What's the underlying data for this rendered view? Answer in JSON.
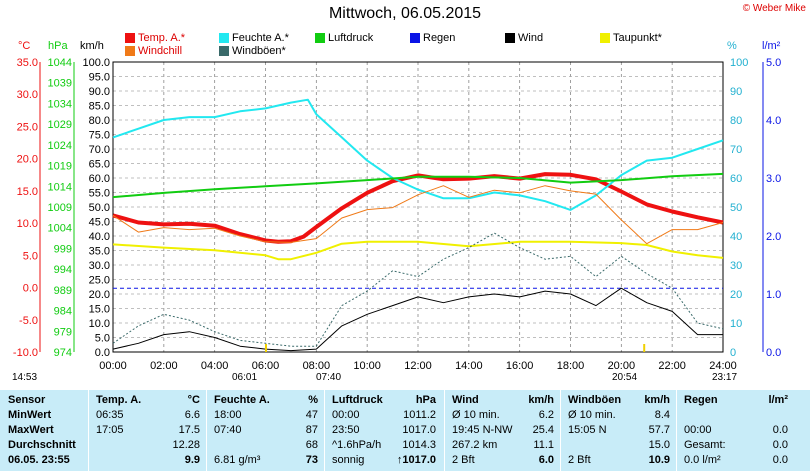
{
  "title": "Mittwoch, 06.05.2015",
  "copyright": "© Weber Mike",
  "legend": [
    {
      "label": "Temp. A.*",
      "color": "#ee1111"
    },
    {
      "label": "Feuchte A.*",
      "color": "#22e8f0"
    },
    {
      "label": "Luftdruck",
      "color": "#11cc11"
    },
    {
      "label": "Regen",
      "color": "#0a14e6"
    },
    {
      "label": "Wind",
      "color": "#000000"
    },
    {
      "label": "Taupunkt*",
      "color": "#f0f000"
    },
    {
      "label": "Windchill",
      "color": "#f07a18"
    },
    {
      "label": "Windböen*",
      "color": "#3a6a6a"
    }
  ],
  "units": {
    "temp": "°C",
    "pressure": "hPa",
    "wind": "km/h",
    "humidity": "%",
    "rain": "l/m²"
  },
  "chart_data": {
    "type": "line",
    "title": "Mittwoch, 06.05.2015",
    "x_ticks": [
      "00:00",
      "02:00",
      "04:00",
      "06:00",
      "08:00",
      "10:00",
      "12:00",
      "14:00",
      "16:00",
      "18:00",
      "20:00",
      "22:00",
      "24:00"
    ],
    "axes": {
      "temp": {
        "label": "°C",
        "ticks": [
          "35.0",
          "30.0",
          "25.0",
          "20.0",
          "15.0",
          "10.0",
          "5.0",
          "0.0",
          "-5.0",
          "-10.0"
        ],
        "range": [
          -10,
          35
        ],
        "color": "#ee1111"
      },
      "pressure": {
        "label": "hPa",
        "ticks": [
          "1044",
          "1039",
          "1034",
          "1029",
          "1024",
          "1019",
          "1014",
          "1009",
          "1004",
          "999",
          "994",
          "989",
          "984",
          "979",
          "974"
        ],
        "range": [
          974,
          1044
        ],
        "color": "#11cc11"
      },
      "wind": {
        "label": "km/h",
        "ticks": [
          "100.0",
          "95.0",
          "90.0",
          "85.0",
          "80.0",
          "75.0",
          "70.0",
          "65.0",
          "60.0",
          "55.0",
          "50.0",
          "45.0",
          "40.0",
          "35.0",
          "30.0",
          "25.0",
          "20.0",
          "15.0",
          "10.0",
          "5.0",
          "0.0"
        ],
        "range": [
          0,
          100
        ],
        "color": "#000000"
      },
      "humidity": {
        "label": "%",
        "ticks": [
          "100",
          "90",
          "80",
          "70",
          "60",
          "50",
          "40",
          "30",
          "20",
          "10",
          "0"
        ],
        "range": [
          0,
          100
        ],
        "color": "#22b0d0"
      },
      "rain": {
        "label": "l/m²",
        "ticks": [
          "5.0",
          "4.0",
          "3.0",
          "2.0",
          "1.0",
          "0.0"
        ],
        "range": [
          0,
          5
        ],
        "color": "#0a14e6"
      }
    },
    "series": [
      {
        "name": "Temp. A.*",
        "axis": "temp",
        "color": "#ee1111",
        "x": [
          0,
          1,
          2,
          3,
          4,
          5,
          6,
          6.5,
          7,
          7.5,
          8,
          9,
          10,
          11,
          12,
          13,
          14,
          15,
          16,
          17,
          18,
          19,
          20,
          21,
          22,
          23,
          24
        ],
        "y": [
          11.2,
          10.1,
          9.8,
          9.9,
          9.6,
          8.3,
          7.3,
          7.1,
          7.2,
          7.9,
          9.4,
          12.3,
          14.7,
          16.5,
          17.4,
          16.8,
          16.9,
          17.3,
          16.9,
          17.6,
          17.5,
          16.8,
          14.9,
          12.9,
          11.8,
          10.9,
          10.1
        ]
      },
      {
        "name": "Feuchte A.*",
        "axis": "humidity",
        "color": "#22e8f0",
        "x": [
          0,
          1,
          2,
          3,
          4,
          5,
          6,
          7,
          7.67,
          8,
          9,
          10,
          11,
          12,
          13,
          14,
          15,
          16,
          17,
          18,
          19,
          20,
          21,
          22,
          23,
          24
        ],
        "y": [
          74,
          77,
          80,
          81,
          81,
          83,
          84,
          86,
          87,
          82,
          74,
          66,
          60,
          56,
          53,
          53,
          55,
          54,
          52,
          49,
          54,
          61,
          66,
          67,
          70,
          73
        ]
      },
      {
        "name": "Luftdruck",
        "axis": "pressure",
        "color": "#11cc11",
        "x": [
          0,
          2,
          4,
          6,
          8,
          10,
          12,
          14,
          16,
          18,
          20,
          22,
          24
        ],
        "y": [
          1011.4,
          1012.4,
          1013.3,
          1014.0,
          1014.7,
          1015.5,
          1016.3,
          1016.3,
          1016.0,
          1014.9,
          1015.5,
          1016.4,
          1017.0
        ]
      },
      {
        "name": "Taupunkt*",
        "axis": "temp",
        "color": "#f0f000",
        "x": [
          0,
          2,
          4,
          6,
          6.5,
          7,
          8,
          9,
          10,
          12,
          14,
          16,
          18,
          20,
          21,
          22,
          23,
          24
        ],
        "y": [
          6.7,
          6.2,
          5.8,
          5.0,
          4.4,
          4.4,
          5.4,
          6.8,
          7.1,
          7.1,
          6.4,
          7.1,
          7.1,
          6.9,
          6.6,
          5.6,
          5.0,
          4.6
        ]
      },
      {
        "name": "Windchill",
        "axis": "temp",
        "color": "#f07a18",
        "x": [
          0,
          1,
          2,
          3,
          4,
          5,
          6,
          7,
          8,
          9,
          10,
          11,
          12,
          13,
          14,
          15,
          16,
          17,
          18,
          19,
          20,
          21,
          22,
          23,
          24
        ],
        "y": [
          11.2,
          8.6,
          9.3,
          9.0,
          9.2,
          8.0,
          7.1,
          7.0,
          7.6,
          10.8,
          12.1,
          12.4,
          14.4,
          15.8,
          14.0,
          15.1,
          14.7,
          15.8,
          15.0,
          14.5,
          10.5,
          6.8,
          9.0,
          9.0,
          10.1
        ]
      },
      {
        "name": "Windböen*",
        "axis": "wind",
        "color": "#3a6a6a",
        "x": [
          0,
          1,
          2,
          3,
          4,
          5,
          6,
          7,
          8,
          9,
          10,
          11,
          12,
          13,
          14,
          15,
          16,
          17,
          18,
          19,
          20,
          21,
          22,
          23,
          24
        ],
        "y": [
          3,
          9,
          13,
          11,
          7,
          4,
          3,
          2,
          2,
          16,
          21,
          28,
          26,
          32,
          36,
          41,
          36,
          32,
          33,
          26,
          33,
          27,
          22,
          10,
          8
        ]
      },
      {
        "name": "Wind",
        "axis": "wind",
        "color": "#000000",
        "x": [
          0,
          1,
          2,
          3,
          4,
          5,
          6,
          7,
          8,
          9,
          10,
          11,
          12,
          13,
          14,
          15,
          16,
          17,
          18,
          19,
          20,
          21,
          22,
          23,
          24
        ],
        "y": [
          1,
          3,
          6,
          7,
          5,
          2,
          1,
          0.5,
          1,
          9,
          13,
          16,
          19,
          17,
          19,
          20,
          19,
          21,
          20,
          16,
          22,
          17,
          14,
          6,
          6
        ]
      }
    ],
    "rain_dashed_level": 1.1,
    "grid": true
  },
  "markers": {
    "left_time": "14:53",
    "sunrise": "06:01",
    "hum_max_time": "07:40",
    "sunset": "20:54",
    "right_time": "23:17"
  },
  "sensor": {
    "headers": {
      "sensor": "Sensor",
      "temp": "Temp. A.",
      "temp_u": "°C",
      "hum": "Feuchte A.",
      "hum_u": "%",
      "press": "Luftdruck",
      "press_u": "hPa",
      "wind": "Wind",
      "wind_u": "km/h",
      "gust": "Windböen",
      "gust_u": "km/h",
      "rain": "Regen",
      "rain_u": "l/m²"
    },
    "rows": [
      {
        "label": "MinWert",
        "t_time": "06:35",
        "t_val": "6.6",
        "h_time": "18:00",
        "h_val": "47",
        "p_time": "00:00",
        "p_val": "1011.2",
        "w_label": "Ø 10 min.",
        "w_val": "6.2",
        "g_label": "Ø 10 min.",
        "g_val": "8.4",
        "r_label": "",
        "r_val": ""
      },
      {
        "label": "MaxWert",
        "t_time": "17:05",
        "t_val": "17.5",
        "h_time": "07:40",
        "h_val": "87",
        "p_time": "23:50",
        "p_val": "1017.0",
        "w_label": "19:45   N-NW",
        "w_val": "25.4",
        "g_label": "15:05         N",
        "g_val": "57.7",
        "r_label": "00:00",
        "r_val": "0.0"
      },
      {
        "label": "Durchschnitt",
        "t_time": "",
        "t_val": "12.28",
        "h_time": "",
        "h_val": "68",
        "p_time": "^1.6hPa/h",
        "p_val": "1014.3",
        "w_label": "267.2 km",
        "w_val": "11.1",
        "g_label": "",
        "g_val": "15.0",
        "r_label": "Gesamt:",
        "r_val": "0.0"
      },
      {
        "label": "06.05. 23:55",
        "t_time": "",
        "t_val": "9.9",
        "h_time": "6.81 g/m³",
        "h_val": "73",
        "p_time": "sonnig",
        "p_val": "↑1017.0",
        "w_label": "2 Bft",
        "w_val": "6.0",
        "g_label": "2 Bft",
        "g_val": "10.9",
        "r_label": "0.0 l/m²",
        "r_val": "0.0"
      }
    ]
  }
}
